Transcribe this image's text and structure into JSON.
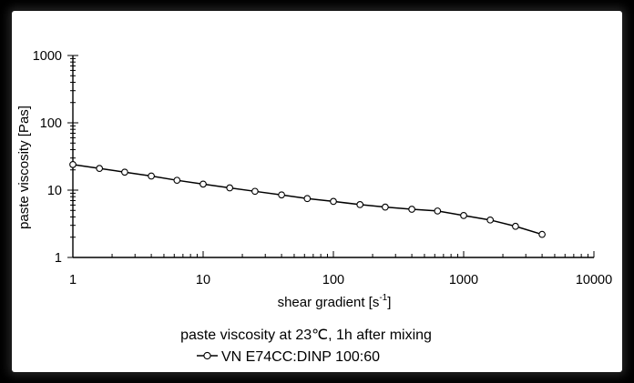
{
  "chart_data": {
    "type": "line",
    "xscale": "log",
    "yscale": "log",
    "xlim": [
      1,
      10000
    ],
    "ylim": [
      1,
      1000
    ],
    "xticks": [
      "1",
      "10",
      "100",
      "1000",
      "10000"
    ],
    "yticks": [
      "1",
      "10",
      "100",
      "1000"
    ],
    "xlabel": "shear gradient  [s",
    "xlabel_sup": "-1",
    "xlabel_end": "]",
    "ylabel": "paste viscosity  [Pas]",
    "caption": "paste viscosity at 23℃, 1h after mixing",
    "grid": false,
    "legend_position": "bottom",
    "series": [
      {
        "name": "VN E74CC:DINP  100:60",
        "marker": "open-circle",
        "color": "#000000",
        "x": [
          1,
          1.6,
          2.5,
          4,
          6.3,
          10,
          16,
          25,
          40,
          63,
          100,
          160,
          250,
          400,
          630,
          1000,
          1600,
          2500,
          4000
        ],
        "y": [
          24,
          21,
          18.5,
          16.2,
          14,
          12.3,
          10.8,
          9.6,
          8.5,
          7.5,
          6.8,
          6.1,
          5.6,
          5.2,
          4.9,
          4.2,
          3.6,
          2.9,
          2.2
        ]
      }
    ]
  }
}
